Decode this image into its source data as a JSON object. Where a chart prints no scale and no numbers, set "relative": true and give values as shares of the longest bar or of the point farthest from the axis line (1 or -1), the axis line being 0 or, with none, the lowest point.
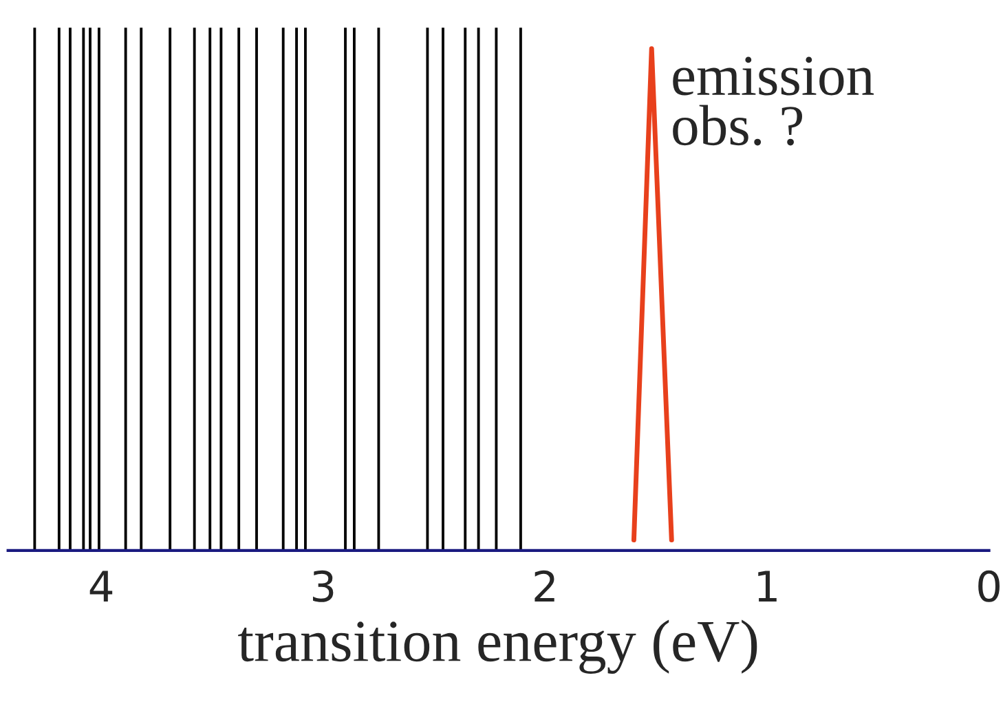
{
  "chart_data": {
    "type": "bar",
    "relative": true,
    "xlabel": "transition energy (eV)",
    "xlim": [
      4.42,
      0
    ],
    "xticks": [
      4,
      3,
      2,
      1,
      0
    ],
    "grid": false,
    "legend": false,
    "series": [
      {
        "color": "#000000",
        "x": [
          4.3,
          4.19,
          4.14,
          4.08,
          4.05,
          4.01,
          3.89,
          3.82,
          3.69,
          3.58,
          3.51,
          3.46,
          3.38,
          3.3,
          3.18,
          3.12,
          3.08,
          2.9,
          2.86,
          2.75,
          2.53,
          2.46,
          2.36,
          2.3,
          2.22,
          2.11
        ],
        "values": [
          1,
          1,
          1,
          1,
          1,
          1,
          1,
          1,
          1,
          1,
          1,
          1,
          1,
          1,
          1,
          1,
          1,
          1,
          1,
          1,
          1,
          1,
          1,
          1,
          1,
          1
        ]
      },
      {
        "type": "line",
        "color": "#e8401c",
        "x": [
          1.6,
          1.52,
          1.43
        ],
        "values": [
          0.02,
          0.96,
          0.02
        ]
      }
    ],
    "annotations": [
      {
        "text": "emission\nobs. ?",
        "x": 1.52,
        "y": 0.96
      }
    ]
  }
}
